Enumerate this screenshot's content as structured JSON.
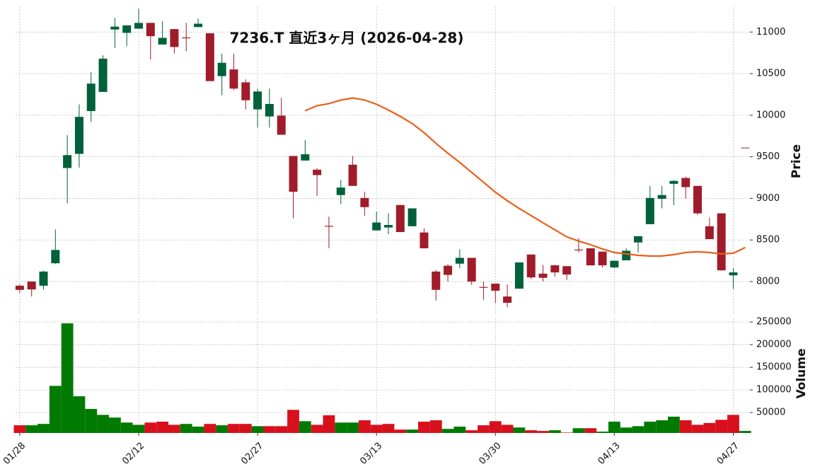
{
  "chart_data": {
    "type": "candlestick",
    "title": "7236.T  直近3ヶ月  (2026-04-28)",
    "categories": [
      "01/28",
      null,
      null,
      null,
      null,
      null,
      null,
      null,
      null,
      null,
      "02/12",
      null,
      null,
      null,
      null,
      null,
      null,
      null,
      null,
      null,
      "02/27",
      null,
      null,
      null,
      null,
      null,
      null,
      null,
      null,
      null,
      "03/13",
      null,
      null,
      null,
      null,
      null,
      null,
      null,
      null,
      null,
      "03/30",
      null,
      null,
      null,
      null,
      null,
      null,
      null,
      null,
      null,
      "04/13",
      null,
      null,
      null,
      null,
      null,
      null,
      null,
      null,
      null,
      "04/27",
      null
    ],
    "open": [
      7950,
      8000,
      7950,
      8220,
      9365,
      9535,
      10050,
      10280,
      11030,
      10990,
      11040,
      11110,
      10850,
      11035,
      10935,
      11060,
      10985,
      10470,
      10550,
      10395,
      10070,
      9985,
      9995,
      9510,
      9455,
      9345,
      8670,
      9040,
      9405,
      9005,
      8615,
      8650,
      8920,
      8665,
      8590,
      8120,
      8190,
      8215,
      8285,
      7935,
      7975,
      7820,
      7915,
      8325,
      8095,
      8195,
      8185,
      8385,
      8400,
      8360,
      8170,
      8255,
      8470,
      8690,
      8995,
      9175,
      9245,
      9150,
      8665,
      8820,
      8075,
      9610
    ],
    "high": [
      7965,
      8000,
      8130,
      8625,
      9760,
      10130,
      10520,
      10720,
      11170,
      11080,
      11280,
      11110,
      11130,
      11035,
      11110,
      11160,
      10985,
      10740,
      10740,
      10430,
      10320,
      10320,
      10210,
      9510,
      9700,
      9360,
      8780,
      9220,
      9510,
      9080,
      8840,
      8820,
      8920,
      8880,
      8640,
      8140,
      8210,
      8390,
      8285,
      8000,
      7975,
      7965,
      8230,
      8325,
      8200,
      8200,
      8185,
      8520,
      8400,
      8360,
      8250,
      8400,
      8545,
      9150,
      9150,
      9220,
      9260,
      9150,
      8770,
      8820,
      8160,
      9610
    ],
    "low": [
      7865,
      7820,
      7905,
      8210,
      8940,
      9370,
      9920,
      10280,
      10810,
      10830,
      11040,
      10670,
      10850,
      10740,
      10770,
      11060,
      10410,
      10240,
      10300,
      10070,
      9850,
      9850,
      9765,
      8760,
      9455,
      9030,
      8400,
      8930,
      9150,
      8790,
      8615,
      8570,
      8595,
      8665,
      8400,
      7770,
      8000,
      8160,
      7960,
      7780,
      7740,
      7690,
      7915,
      8030,
      8000,
      8060,
      8020,
      8350,
      8195,
      8170,
      8160,
      8255,
      8350,
      8690,
      8880,
      8920,
      9000,
      8800,
      8510,
      8130,
      7910,
      9610
    ],
    "close": [
      7900,
      7905,
      8120,
      8380,
      9520,
      9980,
      10380,
      10680,
      11065,
      11080,
      11110,
      10950,
      10930,
      10820,
      10925,
      11100,
      10410,
      10630,
      10320,
      10180,
      10285,
      10135,
      9765,
      9080,
      9530,
      9280,
      8660,
      9130,
      9150,
      8895,
      8710,
      8680,
      8595,
      8880,
      8400,
      7900,
      8080,
      8285,
      8000,
      7925,
      7890,
      7745,
      8230,
      8050,
      8045,
      8110,
      8085,
      8375,
      8195,
      8195,
      8250,
      8370,
      8545,
      9005,
      9040,
      9210,
      9135,
      8820,
      8510,
      8135,
      8110,
      9610
    ],
    "up_color": "#00613a",
    "down_color": "#a01c2a",
    "ylim": [
      7600,
      11300
    ],
    "yticks": [
      8000,
      8500,
      9000,
      9500,
      10000,
      10500,
      11000
    ],
    "ylabel": "Price",
    "grid": true,
    "ma": {
      "color": "#e8601c",
      "values": [
        null,
        null,
        null,
        null,
        null,
        null,
        null,
        null,
        null,
        null,
        null,
        null,
        null,
        null,
        null,
        null,
        null,
        null,
        null,
        null,
        null,
        null,
        null,
        null,
        10054,
        10114,
        10140,
        10182,
        10207,
        10182,
        10131,
        10062,
        9986,
        9900,
        9790,
        9662,
        9543,
        9432,
        9312,
        9193,
        9074,
        8971,
        8878,
        8793,
        8707,
        8622,
        8537,
        8486,
        8443,
        8392,
        8349,
        8332,
        8315,
        8307,
        8307,
        8324,
        8349,
        8358,
        8349,
        8332,
        8341,
        8409
      ]
    },
    "volume": {
      "values": [
        22000,
        22000,
        25000,
        109000,
        247000,
        86000,
        58000,
        45000,
        39000,
        28000,
        23000,
        28000,
        30000,
        23000,
        25000,
        19000,
        25000,
        22000,
        25000,
        25000,
        20000,
        20000,
        20000,
        56000,
        31000,
        23000,
        44000,
        28000,
        28000,
        33000,
        23000,
        25000,
        12500,
        12500,
        30000,
        33000,
        14000,
        19000,
        11000,
        22000,
        31000,
        23000,
        17000,
        11000,
        9500,
        11000,
        6000,
        15500,
        15500,
        8000,
        30000,
        17000,
        20000,
        30000,
        33000,
        41000,
        33000,
        23000,
        27000,
        34000,
        45000,
        9500
      ],
      "up_color": "#007a00",
      "down_color": "#d8101c",
      "ylim": [
        5000,
        258000
      ],
      "yticks": [
        50000,
        100000,
        150000,
        200000,
        250000
      ],
      "ylabel": "Volume"
    }
  }
}
